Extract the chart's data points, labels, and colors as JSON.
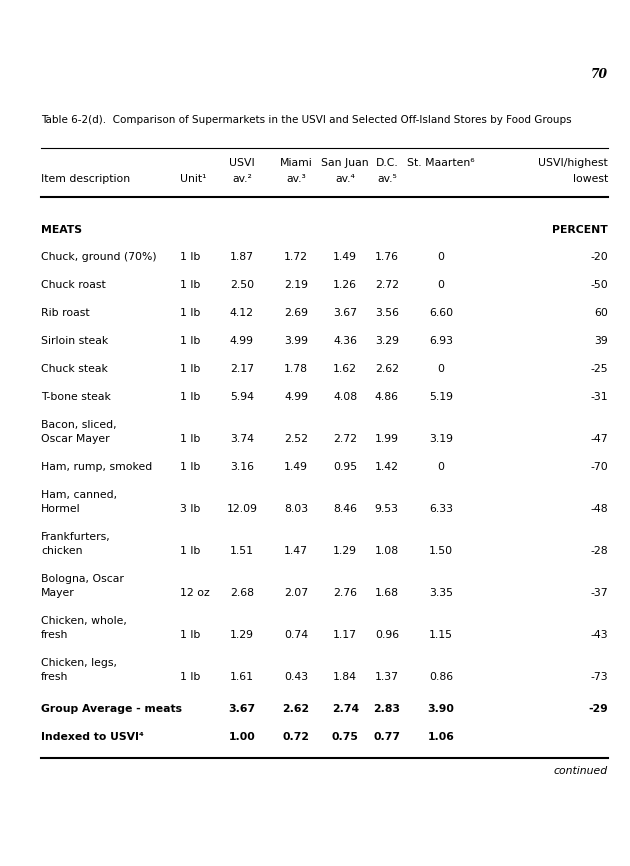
{
  "page_number": "70",
  "table_title": "Table 6-2(d).  Comparison of Supermarkets in the USVI and Selected Off-Island Stores by Food Groups",
  "section_label": "MEATS",
  "percent_label": "PERCENT",
  "rows": [
    {
      "item": "Chuck, ground (70%)",
      "unit": "1 lb",
      "usvi": "1.87",
      "miami": "1.72",
      "sanjuan": "1.49",
      "dc": "1.76",
      "stm": "0",
      "pct": "-20",
      "two_line": false
    },
    {
      "item": "Chuck roast",
      "unit": "1 lb",
      "usvi": "2.50",
      "miami": "2.19",
      "sanjuan": "1.26",
      "dc": "2.72",
      "stm": "0",
      "pct": "-50",
      "two_line": false
    },
    {
      "item": "Rib roast",
      "unit": "1 lb",
      "usvi": "4.12",
      "miami": "2.69",
      "sanjuan": "3.67",
      "dc": "3.56",
      "stm": "6.60",
      "pct": "60",
      "two_line": false
    },
    {
      "item": "Sirloin steak",
      "unit": "1 lb",
      "usvi": "4.99",
      "miami": "3.99",
      "sanjuan": "4.36",
      "dc": "3.29",
      "stm": "6.93",
      "pct": "39",
      "two_line": false
    },
    {
      "item": "Chuck steak",
      "unit": "1 lb",
      "usvi": "2.17",
      "miami": "1.78",
      "sanjuan": "1.62",
      "dc": "2.62",
      "stm": "0",
      "pct": "-25",
      "two_line": false
    },
    {
      "item": "T-bone steak",
      "unit": "1 lb",
      "usvi": "5.94",
      "miami": "4.99",
      "sanjuan": "4.08",
      "dc": "4.86",
      "stm": "5.19",
      "pct": "-31",
      "two_line": false
    },
    {
      "item": "Bacon, sliced,",
      "item2": "  Oscar Mayer",
      "unit": "1 lb",
      "usvi": "3.74",
      "miami": "2.52",
      "sanjuan": "2.72",
      "dc": "1.99",
      "stm": "3.19",
      "pct": "-47",
      "two_line": true
    },
    {
      "item": "Ham, rump, smoked",
      "unit": "1 lb",
      "usvi": "3.16",
      "miami": "1.49",
      "sanjuan": "0.95",
      "dc": "1.42",
      "stm": "0",
      "pct": "-70",
      "two_line": false
    },
    {
      "item": "Ham, canned,",
      "item2": "  Hormel",
      "unit": "3 lb",
      "usvi": "12.09",
      "miami": "8.03",
      "sanjuan": "8.46",
      "dc": "9.53",
      "stm": "6.33",
      "pct": "-48",
      "two_line": true
    },
    {
      "item": "Frankfurters,",
      "item2": "  chicken",
      "unit": "1 lb",
      "usvi": "1.51",
      "miami": "1.47",
      "sanjuan": "1.29",
      "dc": "1.08",
      "stm": "1.50",
      "pct": "-28",
      "two_line": true
    },
    {
      "item": "Bologna, Oscar",
      "item2": "  Mayer",
      "unit": "12 oz",
      "usvi": "2.68",
      "miami": "2.07",
      "sanjuan": "2.76",
      "dc": "1.68",
      "stm": "3.35",
      "pct": "-37",
      "two_line": true
    },
    {
      "item": "Chicken, whole,",
      "item2": "  fresh",
      "unit": "1 lb",
      "usvi": "1.29",
      "miami": "0.74",
      "sanjuan": "1.17",
      "dc": "0.96",
      "stm": "1.15",
      "pct": "-43",
      "two_line": true
    },
    {
      "item": "Chicken, legs,",
      "item2": "  fresh",
      "unit": "1 lb",
      "usvi": "1.61",
      "miami": "0.43",
      "sanjuan": "1.84",
      "dc": "1.37",
      "stm": "0.86",
      "pct": "-73",
      "two_line": true
    }
  ],
  "group_avg": {
    "item": "Group Average - meats",
    "unit": "",
    "usvi": "3.67",
    "miami": "2.62",
    "sanjuan": "2.74",
    "dc": "2.83",
    "stm": "3.90",
    "pct": "-29"
  },
  "indexed": {
    "item": "Indexed to USVI⁴",
    "unit": "",
    "usvi": "1.00",
    "miami": "0.72",
    "sanjuan": "0.75",
    "dc": "0.77",
    "stm": "1.06",
    "pct": ""
  },
  "continued_label": "continued",
  "bg_color": "#ffffff",
  "text_color": "#000000",
  "font_size": 7.8,
  "title_font_size": 7.8
}
